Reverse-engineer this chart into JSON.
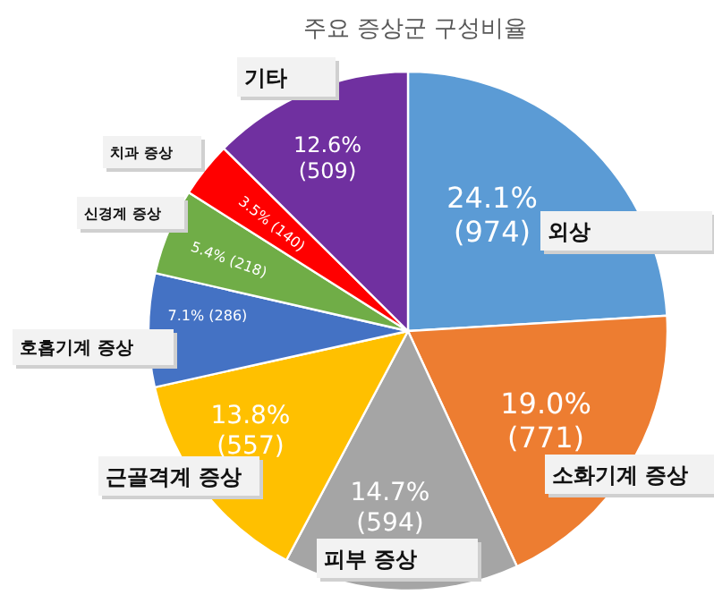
{
  "chart_data": {
    "type": "pie",
    "title": "주요 증상군 구성비율",
    "categories": [
      "외상",
      "소화기계 증상",
      "피부 증상",
      "근골격계 증상",
      "호흡기계 증상",
      "신경계 증상",
      "치과 증상",
      "기타"
    ],
    "values": [
      974,
      771,
      594,
      557,
      286,
      218,
      140,
      509
    ],
    "colors": [
      "#5b9bd5",
      "#ed7d31",
      "#a5a5a5",
      "#ffc000",
      "#4472c4",
      "#70ad47",
      "#ff0000",
      "#7030a0"
    ],
    "value_labels": [
      "24.1%\n(974)",
      "19.0%\n(771)",
      "14.7%\n(594)",
      "13.8%\n(557)",
      "7.1% (286)",
      "5.4% (218)",
      "3.5% (140)",
      "12.6%\n(509)"
    ]
  }
}
